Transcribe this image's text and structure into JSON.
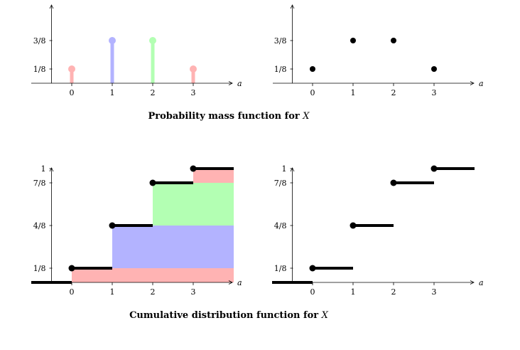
{
  "chart_data": [
    {
      "type": "stem",
      "variant": "colored-stems",
      "x": [
        0,
        1,
        2,
        3
      ],
      "values": [
        0.125,
        0.375,
        0.375,
        0.125
      ],
      "colors": [
        "#ffb3b3",
        "#b3b3ff",
        "#b3ffb3",
        "#ffb3b3"
      ],
      "xticks": [
        "0",
        "1",
        "2",
        "3"
      ],
      "yticks": [
        {
          "value": 0.125,
          "label": "1/8"
        },
        {
          "value": 0.375,
          "label": "3/8"
        }
      ],
      "xlabel": "a",
      "xlim": [
        -1,
        4
      ],
      "ylim": [
        0,
        0.6
      ]
    },
    {
      "type": "scatter",
      "variant": "pmf-dots",
      "x": [
        0,
        1,
        2,
        3
      ],
      "values": [
        0.125,
        0.375,
        0.375,
        0.125
      ],
      "color": "#000000",
      "xticks": [
        "0",
        "1",
        "2",
        "3"
      ],
      "yticks": [
        {
          "value": 0.125,
          "label": "1/8"
        },
        {
          "value": 0.375,
          "label": "3/8"
        }
      ],
      "xlabel": "a",
      "xlim": [
        -1,
        4
      ],
      "ylim": [
        0,
        0.6
      ]
    },
    {
      "type": "step",
      "variant": "stacked-cdf",
      "steps": [
        {
          "x0": 0,
          "value": 0.125,
          "color": "#ffb3b3"
        },
        {
          "x0": 1,
          "value": 0.375,
          "color": "#b3b3ff"
        },
        {
          "x0": 2,
          "value": 0.375,
          "color": "#b3ffb3"
        },
        {
          "x0": 3,
          "value": 0.125,
          "color": "#ffb3b3"
        }
      ],
      "cdf": [
        0.125,
        0.5,
        0.875,
        1
      ],
      "xticks": [
        "0",
        "1",
        "2",
        "3"
      ],
      "yticks": [
        {
          "value": 0.125,
          "label": "1/8"
        },
        {
          "value": 0.5,
          "label": "4/8"
        },
        {
          "value": 0.875,
          "label": "7/8"
        },
        {
          "value": 1,
          "label": "1"
        }
      ],
      "xlabel": "a",
      "xlim": [
        -1,
        4
      ],
      "ylim": [
        0,
        1
      ]
    },
    {
      "type": "step",
      "variant": "cdf",
      "cdf": [
        0.125,
        0.5,
        0.875,
        1
      ],
      "x_breaks": [
        0,
        1,
        2,
        3
      ],
      "xticks": [
        "0",
        "1",
        "2",
        "3"
      ],
      "yticks": [
        {
          "value": 0.125,
          "label": "1/8"
        },
        {
          "value": 0.5,
          "label": "4/8"
        },
        {
          "value": 0.875,
          "label": "7/8"
        },
        {
          "value": 1,
          "label": "1"
        }
      ],
      "xlabel": "a",
      "xlim": [
        -1,
        4
      ],
      "ylim": [
        0,
        1
      ]
    }
  ],
  "captions": {
    "pmf": {
      "text": "Probability mass function for",
      "var": "X"
    },
    "cdf": {
      "text": "Cumulative distribution function for",
      "var": "X"
    }
  }
}
